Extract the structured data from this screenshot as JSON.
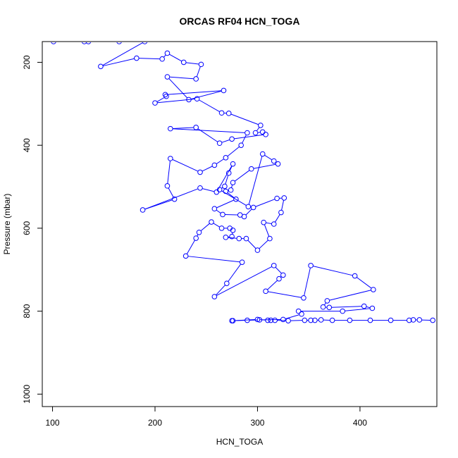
{
  "chart_data": {
    "type": "line",
    "title": "ORCAS RF04 HCN_TOGA",
    "xlabel": "HCN_TOGA",
    "ylabel": "Pressure (mbar)",
    "xlim": [
      90,
      475
    ],
    "ylim": [
      1030,
      150
    ],
    "y_reversed": true,
    "x_ticks": [
      100,
      200,
      300,
      400
    ],
    "y_ticks": [
      200,
      400,
      600,
      800,
      1000
    ],
    "marker": "open-circle",
    "series": [
      {
        "color": "#0000ff",
        "points": [
          [
            101,
            150
          ],
          [
            131,
            150
          ],
          [
            135,
            150
          ],
          [
            165,
            150
          ],
          [
            190,
            150
          ],
          [
            147,
            210
          ],
          [
            182,
            190
          ],
          [
            207,
            192
          ],
          [
            212,
            178
          ],
          [
            228,
            200
          ],
          [
            245,
            205
          ],
          [
            240,
            240
          ],
          [
            212,
            235
          ],
          [
            233,
            290
          ],
          [
            267,
            268
          ],
          [
            210,
            278
          ],
          [
            211,
            282
          ],
          [
            200,
            298
          ],
          [
            241,
            288
          ],
          [
            265,
            322
          ],
          [
            272,
            323
          ],
          [
            303,
            352
          ],
          [
            298,
            370
          ],
          [
            305,
            368
          ],
          [
            308,
            374
          ],
          [
            275,
            385
          ],
          [
            263,
            395
          ],
          [
            240,
            357
          ],
          [
            215,
            360
          ],
          [
            290,
            370
          ],
          [
            284,
            400
          ],
          [
            269,
            430
          ],
          [
            258,
            448
          ],
          [
            244,
            465
          ],
          [
            215,
            432
          ],
          [
            212,
            498
          ],
          [
            219,
            530
          ],
          [
            188,
            556
          ],
          [
            244,
            503
          ],
          [
            260,
            513
          ],
          [
            276,
            445
          ],
          [
            272,
            467
          ],
          [
            268,
            499
          ],
          [
            263,
            507
          ],
          [
            291,
            548
          ],
          [
            305,
            421
          ],
          [
            316,
            438
          ],
          [
            320,
            445
          ],
          [
            294,
            457
          ],
          [
            276,
            490
          ],
          [
            274,
            508
          ],
          [
            269,
            511
          ],
          [
            279,
            530
          ],
          [
            258,
            553
          ],
          [
            266,
            567
          ],
          [
            283,
            568
          ],
          [
            287,
            572
          ],
          [
            296,
            550
          ],
          [
            319,
            528
          ],
          [
            326,
            527
          ],
          [
            323,
            562
          ],
          [
            316,
            590
          ],
          [
            306,
            586
          ],
          [
            312,
            625
          ],
          [
            300,
            653
          ],
          [
            289,
            625
          ],
          [
            282,
            625
          ],
          [
            269,
            622
          ],
          [
            275,
            620
          ],
          [
            276,
            605
          ],
          [
            273,
            600
          ],
          [
            265,
            600
          ],
          [
            255,
            585
          ],
          [
            243,
            610
          ],
          [
            240,
            624
          ],
          [
            230,
            667
          ],
          [
            285,
            682
          ],
          [
            270,
            733
          ],
          [
            258,
            765
          ],
          [
            316,
            690
          ],
          [
            325,
            713
          ],
          [
            321,
            722
          ],
          [
            308,
            752
          ],
          [
            345,
            768
          ],
          [
            352,
            690
          ],
          [
            395,
            715
          ],
          [
            413,
            748
          ],
          [
            368,
            775
          ],
          [
            364,
            790
          ],
          [
            370,
            791
          ],
          [
            404,
            788
          ],
          [
            412,
            793
          ],
          [
            383,
            800
          ],
          [
            340,
            800
          ],
          [
            343,
            807
          ],
          [
            325,
            820
          ],
          [
            302,
            821
          ],
          [
            290,
            822
          ],
          [
            276,
            823
          ],
          [
            275,
            823
          ],
          [
            300,
            820
          ],
          [
            310,
            822
          ],
          [
            313,
            822
          ],
          [
            317,
            822
          ],
          [
            330,
            823
          ],
          [
            346,
            822
          ],
          [
            352,
            822
          ],
          [
            356,
            822
          ],
          [
            362,
            821
          ],
          [
            373,
            822
          ],
          [
            390,
            822
          ],
          [
            410,
            822
          ],
          [
            430,
            822
          ],
          [
            448,
            822
          ],
          [
            452,
            821
          ],
          [
            458,
            821
          ],
          [
            471,
            822
          ]
        ]
      }
    ]
  }
}
